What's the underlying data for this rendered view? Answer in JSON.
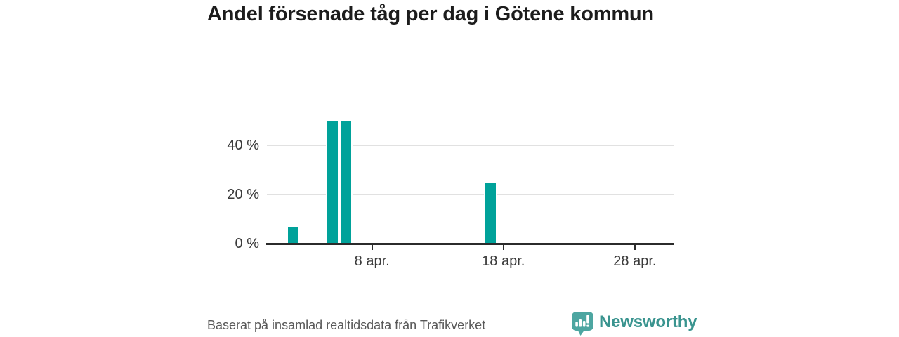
{
  "title": "Andel försenade tåg per dag i Götene kommun",
  "footer": {
    "source_text": "Baserat på insamlad realtidsdata från Trafikverket",
    "brand": "Newsworthy"
  },
  "colors": {
    "bar": "#00a29a",
    "axis_line": "#2b2b2b",
    "gridline": "#e1e1e1",
    "tick_label": "#3a3a3a",
    "title": "#1c1c1c",
    "footer_text": "#585858",
    "brand_text": "#3a948f",
    "logo_bubble": "#4da6a1"
  },
  "chart_data": {
    "type": "bar",
    "title": "Andel försenade tåg per dag i Götene kommun",
    "unit": "%",
    "points": [
      {
        "day": 2,
        "label": "2 apr.",
        "value": 7
      },
      {
        "day": 5,
        "label": "5 apr.",
        "value": 50
      },
      {
        "day": 6,
        "label": "6 apr.",
        "value": 50
      },
      {
        "day": 17,
        "label": "17 apr.",
        "value": 25
      }
    ],
    "x_axis": {
      "range_days": [
        0,
        31
      ],
      "month": "april",
      "ticks": [
        {
          "day": 8,
          "label": "8 apr."
        },
        {
          "day": 18,
          "label": "18 apr."
        },
        {
          "day": 28,
          "label": "28 apr."
        }
      ]
    },
    "y_axis": {
      "range": [
        0,
        52
      ],
      "gridlines": [
        20,
        40
      ],
      "ticks": [
        {
          "value": 0,
          "label": "0 %"
        },
        {
          "value": 20,
          "label": "20 %"
        },
        {
          "value": 40,
          "label": "40 %"
        }
      ]
    },
    "grid": true,
    "legend": null
  }
}
